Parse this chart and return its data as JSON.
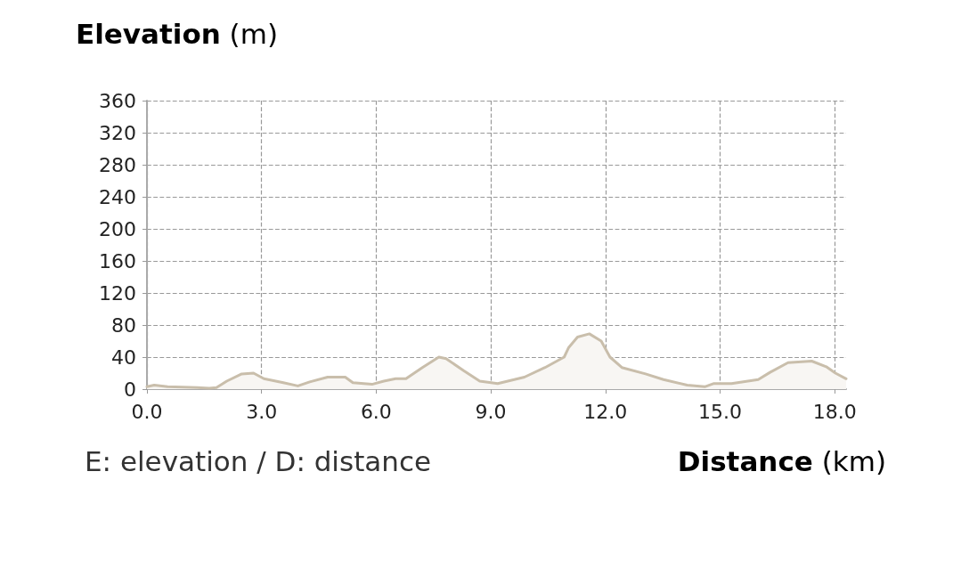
{
  "chart_data": {
    "type": "area",
    "ylabel": "Elevation (m)",
    "xlabel": "Distance (km)",
    "annotations": [
      "E: elevation / D: distance"
    ],
    "series": [
      {
        "color": "#c9beab",
        "x": [
          0,
          0.19,
          0.54,
          1.32,
          1.63,
          1.82,
          2.09,
          2.48,
          2.79,
          3.06,
          3.57,
          3.95,
          4.26,
          4.73,
          5.19,
          5.39,
          5.89,
          6.2,
          6.51,
          6.78,
          7.21,
          7.64,
          7.83,
          8.29,
          8.71,
          9.18,
          9.88,
          10.42,
          10.92,
          11.04,
          11.27,
          11.58,
          11.89,
          12.12,
          12.43,
          13.05,
          13.52,
          14.14,
          14.6,
          14.84,
          15.3,
          16.0,
          16.31,
          16.78,
          17.4,
          17.78,
          18.02,
          18.3
        ],
        "values": [
          3,
          5,
          3,
          2,
          1,
          2,
          10,
          19,
          20,
          13,
          8,
          4,
          9,
          15,
          15,
          8,
          6,
          10,
          13,
          13,
          27,
          40,
          38,
          23,
          10,
          7,
          15,
          27,
          40,
          52,
          65,
          69,
          60,
          40,
          27,
          19,
          12,
          5,
          3,
          7,
          7,
          12,
          21,
          33,
          35,
          28,
          20,
          13
        ]
      }
    ],
    "xlim": [
      0,
      18.3
    ],
    "xticks": [
      {
        "value": 0,
        "label": "0.0"
      },
      {
        "value": 3,
        "label": "3.0"
      },
      {
        "value": 6,
        "label": "6.0"
      },
      {
        "value": 9,
        "label": "9.0"
      },
      {
        "value": 12,
        "label": "12.0"
      },
      {
        "value": 15,
        "label": "15.0"
      },
      {
        "value": 18,
        "label": "18.0"
      }
    ],
    "ylim": [
      0,
      360
    ],
    "yticks": [
      0,
      40,
      80,
      120,
      160,
      200,
      240,
      280,
      320,
      360
    ],
    "grid": true,
    "marker": "none",
    "line_style": "solid"
  }
}
